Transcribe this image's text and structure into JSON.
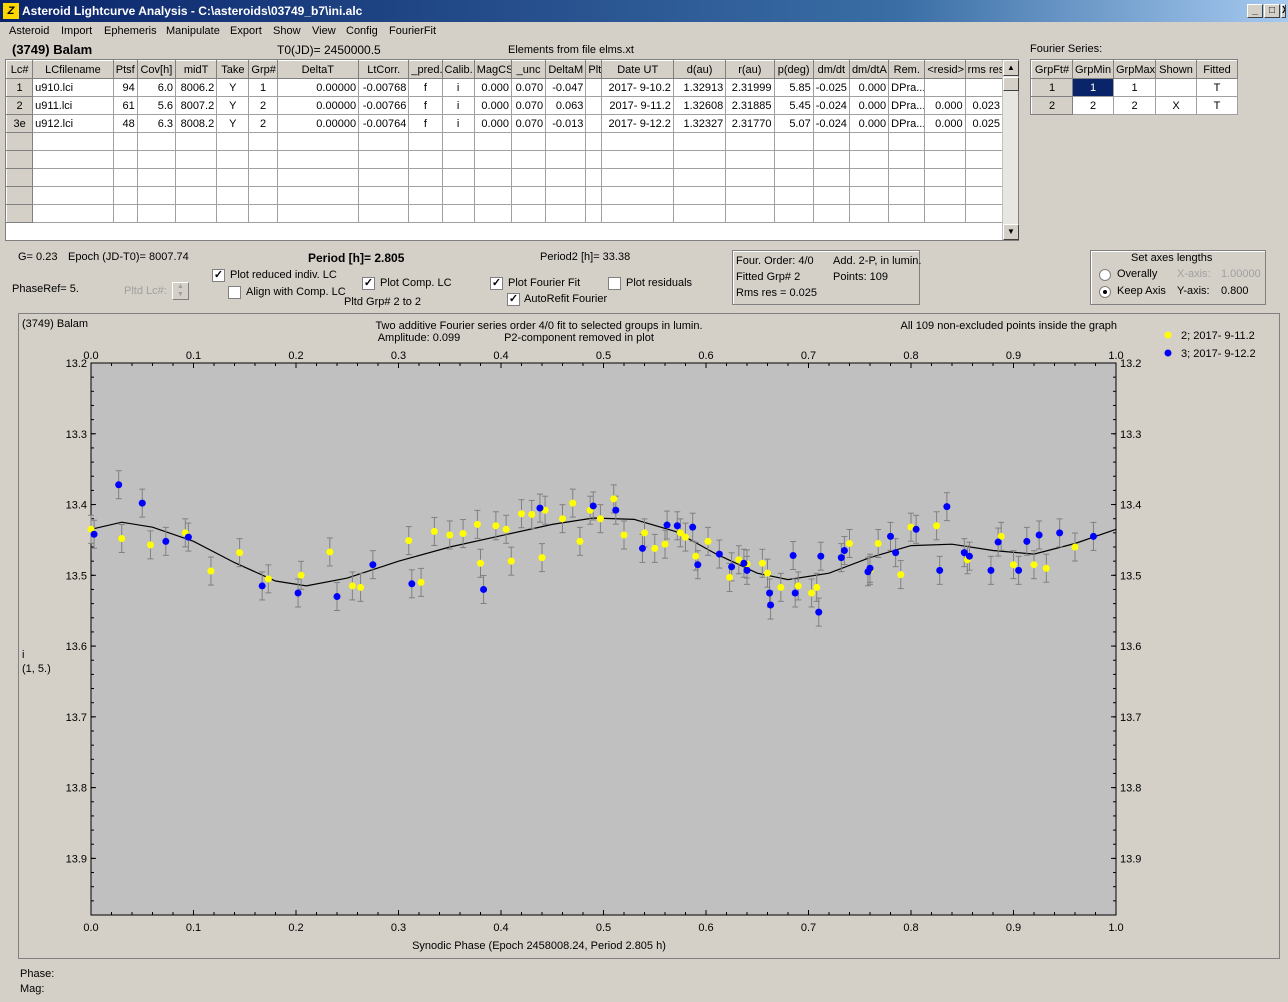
{
  "window": {
    "title": "Asteroid Lightcurve Analysis - C:\\asteroids\\03749_b7\\ini.alc",
    "icon": "Z",
    "minimize": "_",
    "maximize": "□",
    "close": "X"
  },
  "menu": [
    "Asteroid",
    "Import",
    "Ephemeris",
    "Manipulate",
    "Export",
    "Show",
    "View",
    "Config",
    "FourierFit"
  ],
  "asteroid_name": "(3749) Balam",
  "t0": "T0(JD)= 2450000.5",
  "elements_from": "Elements from file elms.xt",
  "fourier_series_label": "Fourier Series:",
  "lc_table": {
    "headers": [
      "Lc#",
      "LCfilename",
      "Ptsf",
      "Cov[h]",
      "midT",
      "Take",
      "Grp#",
      "DeltaT",
      "LtCorr.",
      "_pred.",
      "Calib.",
      "MagCS",
      "_unc",
      "DeltaM",
      "Plt",
      "Date UT",
      "d(au)",
      "r(au)",
      "p(deg)",
      "dm/dt",
      "dm/dtA",
      "Rem.",
      "<resid>",
      "rms res"
    ],
    "rows": [
      [
        "1",
        "u910.lci",
        "94",
        "6.0",
        "8006.2",
        "Y",
        "1",
        "0.00000",
        "-0.00768",
        "f",
        "i",
        "0.000",
        "0.070",
        "-0.047",
        "",
        "2017- 9-10.2",
        "1.32913",
        "2.31999",
        "5.85",
        "-0.025",
        "0.000",
        "DPra...",
        "",
        ""
      ],
      [
        "2",
        "u911.lci",
        "61",
        "5.6",
        "8007.2",
        "Y",
        "2",
        "0.00000",
        "-0.00766",
        "f",
        "i",
        "0.000",
        "0.070",
        "0.063",
        "",
        "2017- 9-11.2",
        "1.32608",
        "2.31885",
        "5.45",
        "-0.024",
        "0.000",
        "DPra...",
        "0.000",
        "0.023"
      ],
      [
        "3e",
        "u912.lci",
        "48",
        "6.3",
        "8008.2",
        "Y",
        "2",
        "0.00000",
        "-0.00764",
        "f",
        "i",
        "0.000",
        "0.070",
        "-0.013",
        "",
        "2017- 9-12.2",
        "1.32327",
        "2.31770",
        "5.07",
        "-0.024",
        "0.000",
        "DPra...",
        "0.000",
        "0.025"
      ]
    ]
  },
  "fourier_table": {
    "headers": [
      "GrpFt#",
      "GrpMin",
      "GrpMax",
      "Shown",
      "Fitted"
    ],
    "rows": [
      [
        "1",
        "1",
        "1",
        "",
        "T"
      ],
      [
        "2",
        "2",
        "2",
        "X",
        "T"
      ]
    ]
  },
  "info": {
    "g": "G= 0.23",
    "epoch": "Epoch (JD-T0)= 8007.74",
    "period": "Period [h]= 2.805",
    "period2": "Period2 [h]= 33.38",
    "phaseref": "PhaseRef= 5.",
    "pltd_lc": "Pltd Lc#:",
    "four_order": "Four. Order:  4/0",
    "add": "Add. 2-P, in lumin.",
    "fitted_grp": "Fitted Grp# 2",
    "points": "Points: 109",
    "rms": "Rms res     = 0.025"
  },
  "checks": {
    "plot_reduced": {
      "label": "Plot reduced indiv. LC",
      "on": true
    },
    "align": {
      "label": "Align with Comp. LC",
      "on": false
    },
    "plot_comp": {
      "label": "Plot Comp. LC",
      "on": true
    },
    "pltd_grp": "Pltd Grp#  2   to   2",
    "plot_fourier": {
      "label": "Plot Fourier Fit",
      "on": true
    },
    "autorefit": {
      "label": "AutoRefit Fourier",
      "on": true
    },
    "plot_resid": {
      "label": "Plot residuals",
      "on": false
    }
  },
  "axes_box": {
    "title": "Set axes lengths",
    "overally": "Overally",
    "keep": "Keep Axis",
    "x_label": "X-axis:",
    "x_val": "1.00000",
    "y_label": "Y-axis:",
    "y_val": "0.800"
  },
  "status": {
    "phase": "Phase:",
    "mag": "Mag:"
  },
  "chart_data": {
    "type": "scatter",
    "title_left": "(3749) Balam",
    "title_center": "Two additive Fourier series order 4/0 fit to selected groups in lumin.",
    "subtitle_amp": "Amplitude: 0.099",
    "subtitle_p2": "P2-component removed in plot",
    "note_right": "All 109 non-excluded points inside the graph",
    "xlabel": "Synodic Phase (Epoch 2458008.24, Period 2.805 h)",
    "ylabel": [
      "i",
      "(1, 5.)"
    ],
    "xlim": [
      0,
      1
    ],
    "ylim": [
      13.2,
      13.98
    ],
    "x_ticks": [
      "0.0",
      "0.1",
      "0.2",
      "0.3",
      "0.4",
      "0.5",
      "0.6",
      "0.7",
      "0.8",
      "0.9",
      "1.0"
    ],
    "y_ticks": [
      "13.2",
      "13.3",
      "13.4",
      "13.5",
      "13.6",
      "13.7",
      "13.8",
      "13.9"
    ],
    "y_tick_values": [
      13.2,
      13.3,
      13.4,
      13.5,
      13.6,
      13.7,
      13.8,
      13.9
    ],
    "fit_curve": [
      [
        0,
        13.435
      ],
      [
        0.03,
        13.425
      ],
      [
        0.06,
        13.432
      ],
      [
        0.1,
        13.452
      ],
      [
        0.14,
        13.482
      ],
      [
        0.18,
        13.508
      ],
      [
        0.21,
        13.515
      ],
      [
        0.25,
        13.504
      ],
      [
        0.3,
        13.48
      ],
      [
        0.35,
        13.46
      ],
      [
        0.4,
        13.444
      ],
      [
        0.45,
        13.428
      ],
      [
        0.49,
        13.419
      ],
      [
        0.53,
        13.421
      ],
      [
        0.57,
        13.438
      ],
      [
        0.61,
        13.47
      ],
      [
        0.65,
        13.497
      ],
      [
        0.68,
        13.506
      ],
      [
        0.72,
        13.497
      ],
      [
        0.76,
        13.475
      ],
      [
        0.8,
        13.458
      ],
      [
        0.84,
        13.456
      ],
      [
        0.88,
        13.465
      ],
      [
        0.92,
        13.47
      ],
      [
        0.96,
        13.455
      ],
      [
        1.0,
        13.435
      ]
    ],
    "series": [
      {
        "name": "2; 2017- 9-11.2",
        "color": "#ffff00",
        "points": [
          [
            0,
            13.435
          ],
          [
            0.03,
            13.448
          ],
          [
            0.058,
            13.457
          ],
          [
            0.092,
            13.44
          ],
          [
            0.117,
            13.494
          ],
          [
            0.145,
            13.468
          ],
          [
            0.173,
            13.505
          ],
          [
            0.205,
            13.5
          ],
          [
            0.233,
            13.467
          ],
          [
            0.255,
            13.515
          ],
          [
            0.263,
            13.517
          ],
          [
            0.31,
            13.451
          ],
          [
            0.322,
            13.51
          ],
          [
            0.335,
            13.438
          ],
          [
            0.35,
            13.443
          ],
          [
            0.363,
            13.441
          ],
          [
            0.377,
            13.428
          ],
          [
            0.38,
            13.483
          ],
          [
            0.395,
            13.43
          ],
          [
            0.405,
            13.435
          ],
          [
            0.41,
            13.48
          ],
          [
            0.42,
            13.413
          ],
          [
            0.43,
            13.414
          ],
          [
            0.44,
            13.475
          ],
          [
            0.443,
            13.408
          ],
          [
            0.46,
            13.42
          ],
          [
            0.47,
            13.398
          ],
          [
            0.477,
            13.452
          ],
          [
            0.487,
            13.408
          ],
          [
            0.497,
            13.42
          ],
          [
            0.51,
            13.392
          ],
          [
            0.52,
            13.443
          ],
          [
            0.54,
            13.44
          ],
          [
            0.55,
            13.462
          ],
          [
            0.56,
            13.456
          ],
          [
            0.575,
            13.44
          ],
          [
            0.58,
            13.446
          ],
          [
            0.59,
            13.473
          ],
          [
            0.602,
            13.452
          ],
          [
            0.623,
            13.503
          ],
          [
            0.632,
            13.478
          ],
          [
            0.64,
            13.484
          ],
          [
            0.655,
            13.483
          ],
          [
            0.66,
            13.497
          ],
          [
            0.673,
            13.517
          ],
          [
            0.69,
            13.515
          ],
          [
            0.703,
            13.525
          ],
          [
            0.708,
            13.517
          ],
          [
            0.74,
            13.455
          ],
          [
            0.76,
            13.493
          ],
          [
            0.768,
            13.455
          ],
          [
            0.79,
            13.499
          ],
          [
            0.8,
            13.432
          ],
          [
            0.825,
            13.43
          ],
          [
            0.855,
            13.478
          ],
          [
            0.888,
            13.445
          ],
          [
            0.9,
            13.485
          ],
          [
            0.92,
            13.485
          ],
          [
            0.932,
            13.49
          ],
          [
            0.96,
            13.46
          ]
        ]
      },
      {
        "name": "3; 2017- 9-12.2",
        "color": "#0000ff",
        "points": [
          [
            0.003,
            13.442
          ],
          [
            0.027,
            13.372
          ],
          [
            0.05,
            13.398
          ],
          [
            0.073,
            13.452
          ],
          [
            0.095,
            13.446
          ],
          [
            0.167,
            13.515
          ],
          [
            0.202,
            13.525
          ],
          [
            0.24,
            13.53
          ],
          [
            0.275,
            13.485
          ],
          [
            0.313,
            13.512
          ],
          [
            0.383,
            13.52
          ],
          [
            0.438,
            13.405
          ],
          [
            0.49,
            13.402
          ],
          [
            0.512,
            13.408
          ],
          [
            0.538,
            13.462
          ],
          [
            0.562,
            13.429
          ],
          [
            0.572,
            13.43
          ],
          [
            0.587,
            13.432
          ],
          [
            0.592,
            13.485
          ],
          [
            0.613,
            13.47
          ],
          [
            0.625,
            13.488
          ],
          [
            0.637,
            13.483
          ],
          [
            0.64,
            13.493
          ],
          [
            0.662,
            13.525
          ],
          [
            0.663,
            13.542
          ],
          [
            0.685,
            13.472
          ],
          [
            0.687,
            13.525
          ],
          [
            0.71,
            13.552
          ],
          [
            0.712,
            13.473
          ],
          [
            0.732,
            13.475
          ],
          [
            0.735,
            13.465
          ],
          [
            0.758,
            13.495
          ],
          [
            0.76,
            13.49
          ],
          [
            0.78,
            13.445
          ],
          [
            0.785,
            13.468
          ],
          [
            0.805,
            13.435
          ],
          [
            0.828,
            13.493
          ],
          [
            0.835,
            13.403
          ],
          [
            0.852,
            13.468
          ],
          [
            0.857,
            13.473
          ],
          [
            0.878,
            13.493
          ],
          [
            0.885,
            13.453
          ],
          [
            0.905,
            13.493
          ],
          [
            0.913,
            13.452
          ],
          [
            0.925,
            13.443
          ],
          [
            0.945,
            13.44
          ],
          [
            0.978,
            13.445
          ]
        ]
      }
    ]
  }
}
